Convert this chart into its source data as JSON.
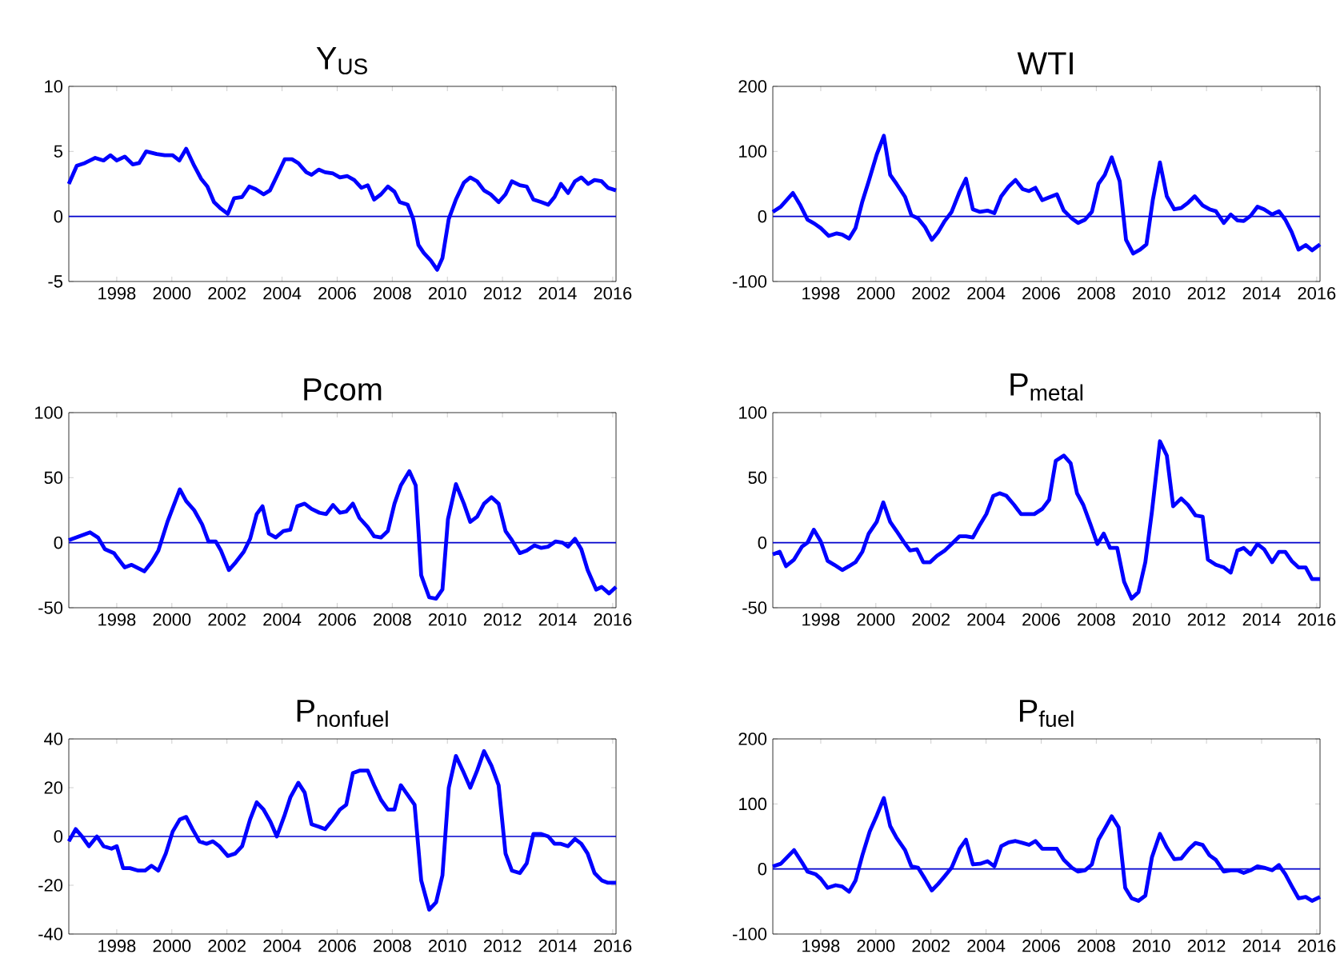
{
  "chart_data": [
    {
      "type": "line",
      "title": "Y$_{US}$",
      "color": "#0000ff",
      "xlim": [
        1996.26,
        2016.12
      ],
      "xticks": [
        1998,
        2000,
        2002,
        2004,
        2006,
        2008,
        2010,
        2012,
        2014,
        2016
      ],
      "ylim": [
        -5,
        10
      ],
      "yticks": [
        -5,
        0,
        5,
        10
      ],
      "ref_lines": [
        {
          "axis": "y",
          "value": 0,
          "color": "#0000cc"
        }
      ],
      "x": [
        1996.26,
        1996.55,
        1996.84,
        1997.22,
        1997.52,
        1997.77,
        1998,
        1998.29,
        1998.58,
        1998.81,
        1999.07,
        1999.45,
        1999.74,
        2000.03,
        2000.27,
        2000.52,
        2000.81,
        2001.06,
        2001.29,
        2001.53,
        2001.78,
        2002.03,
        2002.26,
        2002.55,
        2002.81,
        2003.04,
        2003.33,
        2003.56,
        2003.81,
        2004.1,
        2004.36,
        2004.59,
        2004.88,
        2005.07,
        2005.33,
        2005.56,
        2005.85,
        2006.1,
        2006.37,
        2006.62,
        2006.88,
        2007.11,
        2007.34,
        2007.59,
        2007.84,
        2008.08,
        2008.27,
        2008.56,
        2008.76,
        2008.95,
        2009.14,
        2009.4,
        2009.63,
        2009.82,
        2010.05,
        2010.31,
        2010.6,
        2010.83,
        2011.08,
        2011.33,
        2011.57,
        2011.86,
        2012.11,
        2012.34,
        2012.63,
        2012.88,
        2013.12,
        2013.41,
        2013.66,
        2013.89,
        2014.12,
        2014.38,
        2014.63,
        2014.86,
        2015.11,
        2015.34,
        2015.6,
        2015.83,
        2016.12
      ],
      "values": [
        2.5,
        3.9,
        4.1,
        4.5,
        4.3,
        4.7,
        4.3,
        4.6,
        4.0,
        4.1,
        5.0,
        4.8,
        4.7,
        4.7,
        4.3,
        5.2,
        3.9,
        2.9,
        2.3,
        1.1,
        0.6,
        0.2,
        1.4,
        1.5,
        2.3,
        2.1,
        1.7,
        2.0,
        3.1,
        4.4,
        4.4,
        4.1,
        3.4,
        3.2,
        3.6,
        3.4,
        3.3,
        3.0,
        3.1,
        2.8,
        2.2,
        2.4,
        1.3,
        1.7,
        2.3,
        1.9,
        1.1,
        0.9,
        -0.2,
        -2.2,
        -2.8,
        -3.4,
        -4.1,
        -3.2,
        -0.2,
        1.3,
        2.6,
        3.0,
        2.7,
        2.0,
        1.7,
        1.1,
        1.7,
        2.7,
        2.4,
        2.3,
        1.3,
        1.1,
        0.9,
        1.5,
        2.5,
        1.8,
        2.7,
        3.0,
        2.5,
        2.8,
        2.7,
        2.2,
        2.0
      ]
    },
    {
      "type": "line",
      "title": "WTI",
      "color": "#0000ff",
      "xlim": [
        1996.26,
        2016.12
      ],
      "xticks": [
        1998,
        2000,
        2002,
        2004,
        2006,
        2008,
        2010,
        2012,
        2014,
        2016
      ],
      "ylim": [
        -100,
        200
      ],
      "yticks": [
        -100,
        0,
        100,
        200
      ],
      "ref_lines": [
        {
          "axis": "y",
          "value": 0,
          "color": "#0000cc"
        }
      ],
      "x": [
        1996.26,
        1996.55,
        1996.99,
        1997.26,
        1997.52,
        1997.77,
        1998,
        1998.29,
        1998.58,
        1998.78,
        1999.03,
        1999.26,
        1999.51,
        1999.74,
        2000.03,
        2000.29,
        2000.52,
        2000.75,
        2001.06,
        2001.29,
        2001.53,
        2001.78,
        2002.03,
        2002.26,
        2002.5,
        2002.75,
        2003.04,
        2003.27,
        2003.52,
        2003.78,
        2004.05,
        2004.3,
        2004.55,
        2004.82,
        2005.07,
        2005.33,
        2005.56,
        2005.79,
        2006.04,
        2006.33,
        2006.57,
        2006.82,
        2007.11,
        2007.34,
        2007.59,
        2007.84,
        2008.08,
        2008.31,
        2008.56,
        2008.85,
        2009.08,
        2009.34,
        2009.59,
        2009.82,
        2010.05,
        2010.31,
        2010.56,
        2010.83,
        2011.08,
        2011.33,
        2011.57,
        2011.86,
        2012.11,
        2012.34,
        2012.63,
        2012.88,
        2013.12,
        2013.35,
        2013.6,
        2013.85,
        2014.09,
        2014.38,
        2014.63,
        2014.86,
        2015.09,
        2015.34,
        2015.6,
        2015.83,
        2016.12
      ],
      "values": [
        7,
        15,
        36,
        17,
        -5,
        -11,
        -18,
        -30,
        -26,
        -28,
        -34,
        -18,
        23,
        54,
        95,
        124,
        64,
        50,
        30,
        2,
        -3,
        -16,
        -36,
        -24,
        -7,
        7,
        38,
        58,
        11,
        7,
        9,
        5,
        31,
        46,
        56,
        42,
        39,
        44,
        25,
        30,
        34,
        9,
        -3,
        -10,
        -5,
        7,
        50,
        64,
        91,
        54,
        -36,
        -57,
        -51,
        -43,
        25,
        83,
        31,
        11,
        13,
        21,
        31,
        17,
        11,
        8,
        -10,
        3,
        -6,
        -7,
        1,
        15,
        11,
        3,
        8,
        -5,
        -24,
        -51,
        -44,
        -52,
        -43
      ]
    },
    {
      "type": "line",
      "title": "Pcom",
      "color": "#0000ff",
      "xlim": [
        1996.26,
        2016.12
      ],
      "xticks": [
        1998,
        2000,
        2002,
        2004,
        2006,
        2008,
        2010,
        2012,
        2014,
        2016
      ],
      "ylim": [
        -50,
        100
      ],
      "yticks": [
        -50,
        0,
        50,
        100
      ],
      "ref_lines": [
        {
          "axis": "y",
          "value": 0,
          "color": "#0000cc"
        }
      ],
      "x": [
        1996.26,
        1997.03,
        1997.32,
        1997.57,
        1997.9,
        1998,
        1998.29,
        1998.54,
        1999.0,
        1999.26,
        1999.51,
        1999.84,
        2000.29,
        2000.52,
        2000.81,
        2001.1,
        2001.33,
        2001.59,
        2001.78,
        2002.07,
        2002.32,
        2002.61,
        2002.84,
        2003.08,
        2003.29,
        2003.52,
        2003.77,
        2004.05,
        2004.3,
        2004.55,
        2004.82,
        2005.07,
        2005.36,
        2005.6,
        2005.85,
        2006.1,
        2006.33,
        2006.57,
        2006.81,
        2007.11,
        2007.34,
        2007.59,
        2007.84,
        2008.08,
        2008.31,
        2008.62,
        2008.85,
        2009.05,
        2009.34,
        2009.59,
        2009.82,
        2010.02,
        2010.31,
        2010.6,
        2010.83,
        2011.08,
        2011.33,
        2011.6,
        2011.86,
        2012.11,
        2012.34,
        2012.63,
        2012.88,
        2013.16,
        2013.41,
        2013.66,
        2013.93,
        2014.18,
        2014.38,
        2014.63,
        2014.86,
        2015.09,
        2015.4,
        2015.6,
        2015.87,
        2016.12
      ],
      "values": [
        2,
        8,
        4,
        -5,
        -8,
        -11,
        -19,
        -17,
        -22,
        -15,
        -6,
        16,
        41,
        32,
        25,
        14,
        1,
        1,
        -6,
        -21,
        -15,
        -7,
        3,
        22,
        28,
        7,
        4,
        9,
        10,
        28,
        30,
        26,
        23,
        22,
        29,
        23,
        24,
        30,
        19,
        12,
        5,
        4,
        9,
        30,
        44,
        55,
        44,
        -25,
        -42,
        -43,
        -36,
        18,
        45,
        30,
        16,
        20,
        30,
        35,
        30,
        9,
        2,
        -8,
        -6,
        -2,
        -4,
        -3,
        1,
        0,
        -3,
        3,
        -5,
        -21,
        -36,
        -34,
        -39,
        -34
      ]
    },
    {
      "type": "line",
      "title": "P$_{metal}$",
      "color": "#0000ff",
      "xlim": [
        1996.26,
        2016.12
      ],
      "xticks": [
        1998,
        2000,
        2002,
        2004,
        2006,
        2008,
        2010,
        2012,
        2014,
        2016
      ],
      "ylim": [
        -50,
        100
      ],
      "yticks": [
        -50,
        0,
        50,
        100
      ],
      "ref_lines": [
        {
          "axis": "y",
          "value": 0,
          "color": "#0000cc"
        }
      ],
      "x": [
        1996.26,
        1996.51,
        1996.74,
        1997.03,
        1997.32,
        1997.52,
        1997.75,
        1998,
        1998.25,
        1998.49,
        1998.78,
        1999.03,
        1999.26,
        1999.51,
        1999.74,
        2000.03,
        2000.27,
        2000.52,
        2000.75,
        2001.0,
        2001.24,
        2001.49,
        2001.72,
        2001.97,
        2002.22,
        2002.5,
        2002.75,
        2003.04,
        2003.27,
        2003.52,
        2003.78,
        2004.01,
        2004.26,
        2004.49,
        2004.74,
        2005.02,
        2005.27,
        2005.52,
        2005.75,
        2006.04,
        2006.29,
        2006.53,
        2006.82,
        2007.07,
        2007.3,
        2007.53,
        2007.79,
        2008.04,
        2008.27,
        2008.5,
        2008.76,
        2009.01,
        2009.28,
        2009.53,
        2009.78,
        2010.02,
        2010.31,
        2010.56,
        2010.79,
        2011.08,
        2011.33,
        2011.6,
        2011.86,
        2012.05,
        2012.34,
        2012.63,
        2012.88,
        2013.12,
        2013.35,
        2013.6,
        2013.85,
        2014.09,
        2014.38,
        2014.63,
        2014.86,
        2015.09,
        2015.34,
        2015.6,
        2015.83,
        2016.12
      ],
      "values": [
        -9,
        -7,
        -18,
        -13,
        -3,
        0,
        10,
        1,
        -14,
        -17,
        -21,
        -18,
        -15,
        -7,
        7,
        16,
        31,
        16,
        9,
        1,
        -6,
        -5,
        -15,
        -15,
        -10,
        -6,
        -1,
        5,
        5,
        4,
        14,
        22,
        36,
        38,
        36,
        29,
        22,
        22,
        22,
        26,
        33,
        63,
        67,
        61,
        38,
        29,
        14,
        -1,
        7,
        -4,
        -4,
        -30,
        -43,
        -38,
        -15,
        24,
        78,
        67,
        28,
        34,
        29,
        21,
        20,
        -13,
        -17,
        -19,
        -23,
        -6,
        -4,
        -9,
        -1,
        -5,
        -15,
        -7,
        -7,
        -14,
        -19,
        -19,
        -28,
        -28
      ]
    },
    {
      "type": "line",
      "title": "P$_{nonfuel}$",
      "color": "#0000ff",
      "xlim": [
        1996.26,
        2016.12
      ],
      "xticks": [
        1998,
        2000,
        2002,
        2004,
        2006,
        2008,
        2010,
        2012,
        2014,
        2016
      ],
      "ylim": [
        -40,
        40
      ],
      "yticks": [
        -40,
        -20,
        0,
        20,
        40
      ],
      "ref_lines": [
        {
          "axis": "y",
          "value": 0,
          "color": "#0000cc"
        }
      ],
      "x": [
        1996.26,
        1996.51,
        1996.74,
        1996.99,
        1997.28,
        1997.52,
        1997.81,
        1998,
        1998.23,
        1998.48,
        1998.78,
        1999.03,
        1999.26,
        1999.51,
        1999.78,
        2000.03,
        2000.29,
        2000.52,
        2000.75,
        2001.0,
        2001.26,
        2001.49,
        2001.72,
        2002.03,
        2002.3,
        2002.55,
        2002.84,
        2003.08,
        2003.33,
        2003.58,
        2003.81,
        2004.1,
        2004.3,
        2004.59,
        2004.82,
        2005.07,
        2005.33,
        2005.56,
        2005.85,
        2006.1,
        2006.33,
        2006.57,
        2006.81,
        2007.11,
        2007.34,
        2007.59,
        2007.84,
        2008.08,
        2008.31,
        2008.56,
        2008.81,
        2009.05,
        2009.34,
        2009.59,
        2009.82,
        2010.05,
        2010.31,
        2010.56,
        2010.83,
        2011.08,
        2011.33,
        2011.6,
        2011.86,
        2012.11,
        2012.34,
        2012.63,
        2012.88,
        2013.12,
        2013.41,
        2013.66,
        2013.89,
        2014.12,
        2014.38,
        2014.63,
        2014.86,
        2015.09,
        2015.34,
        2015.6,
        2015.83,
        2016.12
      ],
      "values": [
        -2,
        3,
        0,
        -4,
        0,
        -4,
        -5,
        -4,
        -13,
        -13,
        -14,
        -14,
        -12,
        -14,
        -7,
        2,
        7,
        8,
        3,
        -2,
        -3,
        -2,
        -4,
        -8,
        -7,
        -4,
        7,
        14,
        11,
        6,
        0,
        9,
        16,
        22,
        18,
        5,
        4,
        3,
        7,
        11,
        13,
        26,
        27,
        27,
        21,
        15,
        11,
        11,
        21,
        17,
        13,
        -18,
        -30,
        -27,
        -16,
        20,
        33,
        27,
        20,
        27,
        35,
        29,
        21,
        -7,
        -14,
        -15,
        -11,
        1,
        1,
        0,
        -3,
        -3,
        -4,
        -1,
        -3,
        -7,
        -15,
        -18,
        -19,
        -19
      ]
    },
    {
      "type": "line",
      "title": "P$_{fuel}$",
      "color": "#0000ff",
      "xlim": [
        1996.26,
        2016.12
      ],
      "xticks": [
        1998,
        2000,
        2002,
        2004,
        2006,
        2008,
        2010,
        2012,
        2014,
        2016
      ],
      "ylim": [
        -100,
        200
      ],
      "yticks": [
        -100,
        0,
        100,
        200
      ],
      "ref_lines": [
        {
          "axis": "y",
          "value": 0,
          "color": "#0000cc"
        }
      ],
      "x": [
        1996.26,
        1996.55,
        1997.03,
        1997.32,
        1997.52,
        1997.81,
        1998,
        1998.25,
        1998.54,
        1998.78,
        1999.03,
        1999.26,
        1999.51,
        1999.78,
        2000.03,
        2000.29,
        2000.52,
        2000.75,
        2001.06,
        2001.29,
        2001.53,
        2001.78,
        2002.03,
        2002.26,
        2002.5,
        2002.75,
        2003.04,
        2003.27,
        2003.52,
        2003.78,
        2004.05,
        2004.3,
        2004.55,
        2004.82,
        2005.07,
        2005.33,
        2005.56,
        2005.79,
        2006.04,
        2006.33,
        2006.57,
        2006.82,
        2007.11,
        2007.34,
        2007.59,
        2007.84,
        2008.08,
        2008.31,
        2008.56,
        2008.81,
        2009.05,
        2009.28,
        2009.53,
        2009.78,
        2010.02,
        2010.31,
        2010.56,
        2010.83,
        2011.08,
        2011.37,
        2011.6,
        2011.86,
        2012.11,
        2012.34,
        2012.63,
        2012.88,
        2013.12,
        2013.35,
        2013.6,
        2013.85,
        2014.09,
        2014.38,
        2014.63,
        2014.86,
        2015.09,
        2015.34,
        2015.6,
        2015.83,
        2016.12
      ],
      "values": [
        4,
        8,
        29,
        10,
        -4,
        -8,
        -15,
        -29,
        -25,
        -27,
        -35,
        -18,
        21,
        58,
        82,
        109,
        66,
        48,
        29,
        4,
        2,
        -15,
        -33,
        -23,
        -11,
        2,
        31,
        45,
        7,
        8,
        12,
        4,
        35,
        41,
        43,
        40,
        37,
        43,
        31,
        31,
        31,
        14,
        2,
        -4,
        -2,
        7,
        45,
        62,
        81,
        64,
        -29,
        -45,
        -49,
        -41,
        18,
        54,
        33,
        15,
        16,
        31,
        40,
        37,
        21,
        14,
        -4,
        -2,
        -2,
        -6,
        -2,
        4,
        2,
        -2,
        6,
        -8,
        -26,
        -45,
        -43,
        -49,
        -43
      ]
    }
  ]
}
